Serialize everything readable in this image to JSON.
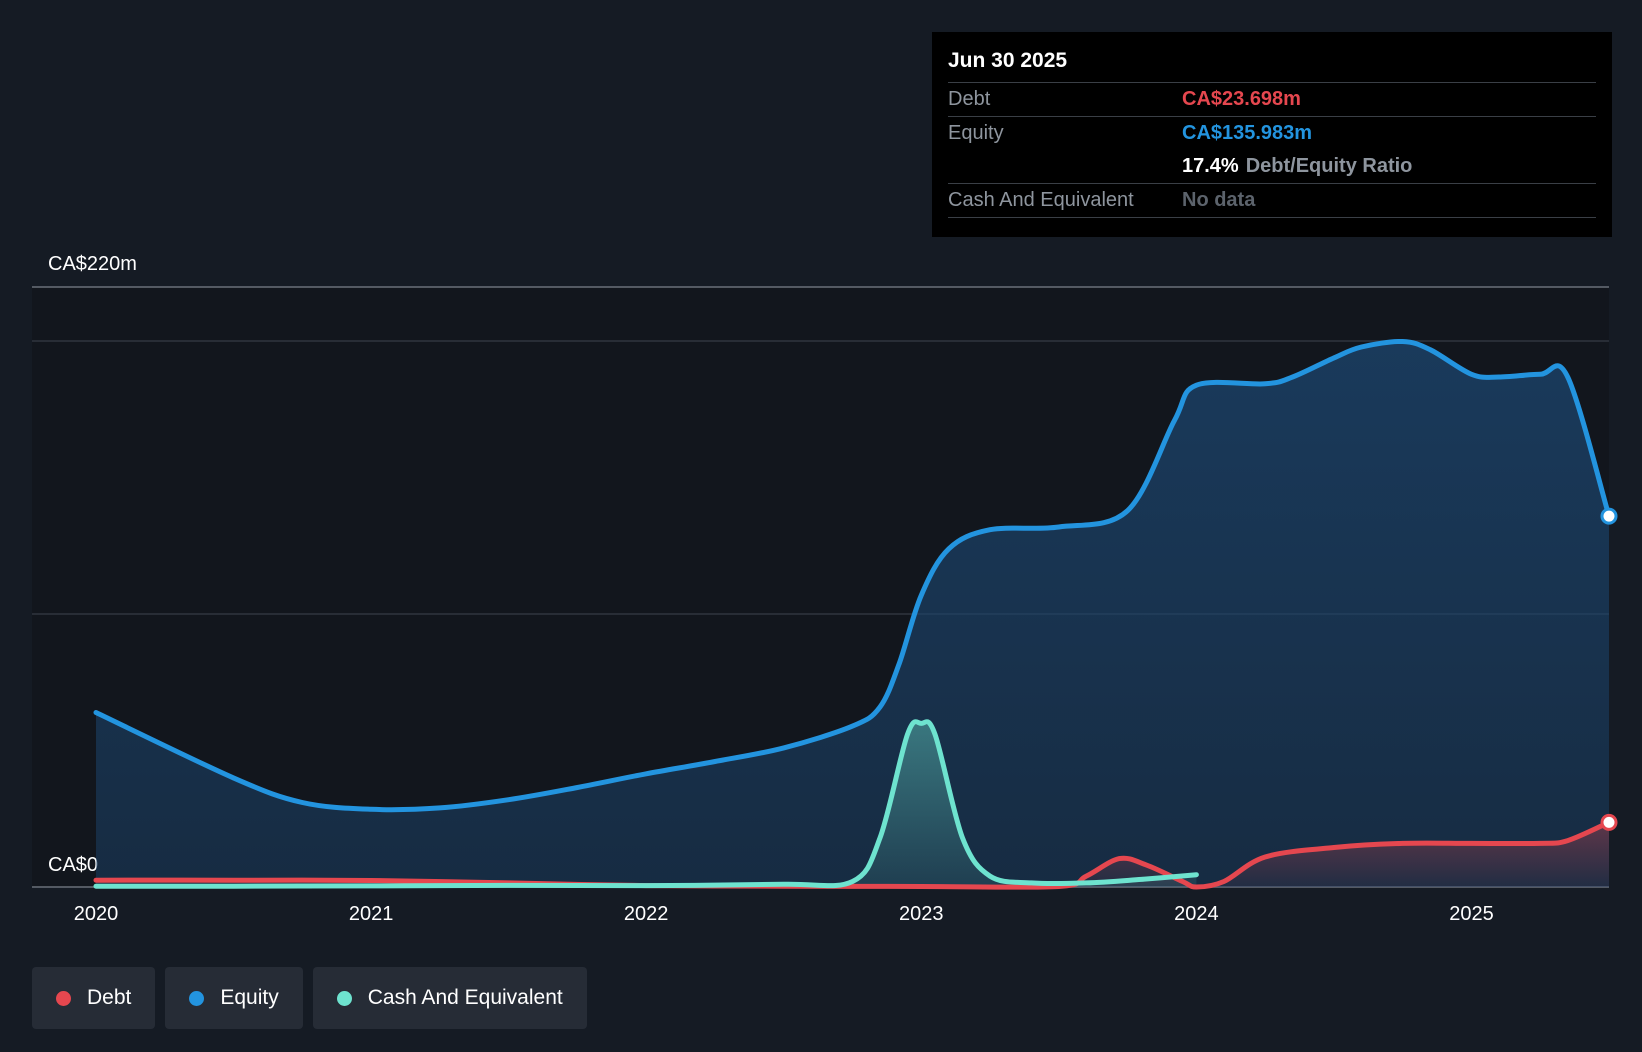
{
  "tooltip": {
    "date": "Jun 30 2025",
    "debt_label": "Debt",
    "debt_value": "CA$23.698m",
    "equity_label": "Equity",
    "equity_value": "CA$135.983m",
    "ratio_value": "17.4%",
    "ratio_label": "Debt/Equity Ratio",
    "cash_label": "Cash And Equivalent",
    "cash_value": "No data"
  },
  "legend": {
    "debt": "Debt",
    "equity": "Equity",
    "cash": "Cash And Equivalent"
  },
  "colors": {
    "debt": "#e5474f",
    "equity": "#2394df",
    "cash": "#6ee3cf",
    "background": "#151b24"
  },
  "chart_data": {
    "type": "area",
    "title": "",
    "xlabel": "",
    "ylabel": "",
    "ylim": [
      0,
      220
    ],
    "xlim": [
      2020.0,
      2025.5
    ],
    "y_labels": {
      "top": "CA$220m",
      "bottom": "CA$0"
    },
    "gridlines": [
      200,
      100
    ],
    "x_ticks": [
      {
        "value": 2020,
        "label": "2020"
      },
      {
        "value": 2021,
        "label": "2021"
      },
      {
        "value": 2022,
        "label": "2022"
      },
      {
        "value": 2023,
        "label": "2023"
      },
      {
        "value": 2024,
        "label": "2024"
      },
      {
        "value": 2025,
        "label": "2025"
      }
    ],
    "series": [
      {
        "name": "Equity",
        "color": "#2394df",
        "points": [
          [
            2020.0,
            64
          ],
          [
            2020.5,
            40
          ],
          [
            2020.75,
            31
          ],
          [
            2021.0,
            28.5
          ],
          [
            2021.25,
            29
          ],
          [
            2021.5,
            32
          ],
          [
            2021.75,
            36.5
          ],
          [
            2022.0,
            41.5
          ],
          [
            2022.25,
            46
          ],
          [
            2022.5,
            51
          ],
          [
            2022.75,
            59
          ],
          [
            2022.85,
            66
          ],
          [
            2022.92,
            82
          ],
          [
            2023.0,
            107
          ],
          [
            2023.1,
            124
          ],
          [
            2023.25,
            131
          ],
          [
            2023.5,
            132
          ],
          [
            2023.75,
            138
          ],
          [
            2023.92,
            171
          ],
          [
            2024.0,
            184
          ],
          [
            2024.25,
            184.5
          ],
          [
            2024.35,
            187
          ],
          [
            2024.5,
            194
          ],
          [
            2024.6,
            198
          ],
          [
            2024.75,
            200
          ],
          [
            2024.85,
            197
          ],
          [
            2025.0,
            188
          ],
          [
            2025.1,
            187
          ],
          [
            2025.25,
            188
          ],
          [
            2025.35,
            187
          ],
          [
            2025.5,
            136
          ]
        ]
      },
      {
        "name": "Debt",
        "color": "#e5474f",
        "points": [
          [
            2020.0,
            2.5
          ],
          [
            2020.5,
            2.5
          ],
          [
            2021.0,
            2.4
          ],
          [
            2021.5,
            1.5
          ],
          [
            2022.0,
            0.5
          ],
          [
            2022.5,
            0.3
          ],
          [
            2023.0,
            0.2
          ],
          [
            2023.5,
            0.2
          ],
          [
            2023.6,
            4
          ],
          [
            2023.72,
            10.4
          ],
          [
            2023.82,
            8
          ],
          [
            2023.95,
            2
          ],
          [
            2024.0,
            0
          ],
          [
            2024.1,
            2
          ],
          [
            2024.25,
            11
          ],
          [
            2024.5,
            14.5
          ],
          [
            2024.75,
            16
          ],
          [
            2025.0,
            16
          ],
          [
            2025.25,
            16
          ],
          [
            2025.35,
            17
          ],
          [
            2025.5,
            23.7
          ]
        ]
      },
      {
        "name": "Cash And Equivalent",
        "color": "#6ee3cf",
        "points": [
          [
            2020.0,
            0.3
          ],
          [
            2020.5,
            0.3
          ],
          [
            2021.0,
            0.4
          ],
          [
            2021.5,
            0.6
          ],
          [
            2022.0,
            0.5
          ],
          [
            2022.5,
            1.0
          ],
          [
            2022.75,
            2.0
          ],
          [
            2022.85,
            18
          ],
          [
            2022.95,
            56
          ],
          [
            2023.0,
            60
          ],
          [
            2023.05,
            56
          ],
          [
            2023.15,
            18
          ],
          [
            2023.25,
            4
          ],
          [
            2023.4,
            1.5
          ],
          [
            2023.6,
            1.5
          ],
          [
            2023.8,
            2.8
          ],
          [
            2024.0,
            4.5
          ]
        ]
      }
    ]
  }
}
